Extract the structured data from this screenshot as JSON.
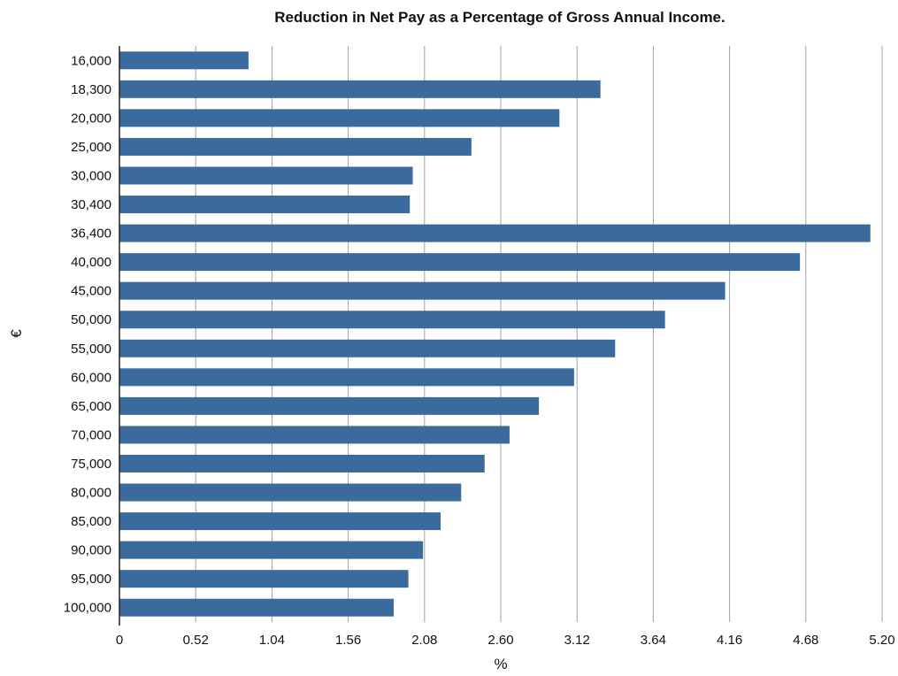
{
  "chart_data": {
    "type": "bar",
    "orientation": "horizontal",
    "title": "Reduction in Net Pay as a Percentage of Gross Annual Income.",
    "xlabel": "%",
    "ylabel": "€",
    "categories": [
      "16,000",
      "18,300",
      "20,000",
      "25,000",
      "30,000",
      "30,400",
      "36,400",
      "40,000",
      "45,000",
      "50,000",
      "55,000",
      "60,000",
      "65,000",
      "70,000",
      "75,000",
      "80,000",
      "85,000",
      "90,000",
      "95,000",
      "100,000"
    ],
    "values": [
      0.88,
      3.28,
      3.0,
      2.4,
      2.0,
      1.98,
      5.12,
      4.64,
      4.13,
      3.72,
      3.38,
      3.1,
      2.86,
      2.66,
      2.49,
      2.33,
      2.19,
      2.07,
      1.97,
      1.87
    ],
    "xticks": [
      "0",
      "0.52",
      "1.04",
      "1.56",
      "2.08",
      "2.60",
      "3.12",
      "3.64",
      "4.16",
      "4.68",
      "5.20"
    ],
    "xlim": [
      0,
      5.2
    ],
    "grid": true,
    "bar_color": "#3b6a9c",
    "grid_color": "#a0a0a0"
  }
}
